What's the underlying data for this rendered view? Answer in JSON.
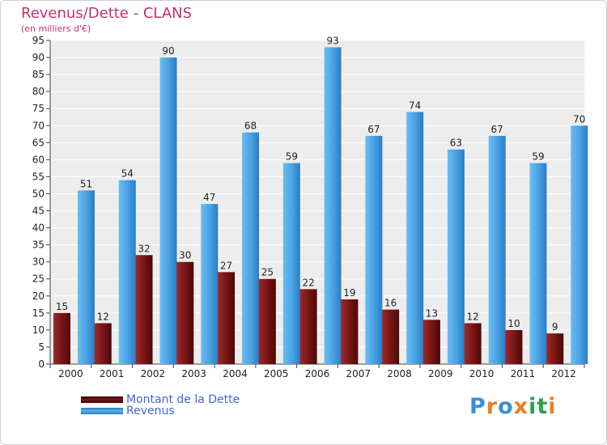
{
  "chart_data": {
    "type": "bar",
    "title": "Revenus/Dette - CLANS",
    "subtitle": "(en milliers d'€)",
    "categories": [
      "2000",
      "2001",
      "2002",
      "2003",
      "2004",
      "2005",
      "2006",
      "2007",
      "2008",
      "2009",
      "2010",
      "2011",
      "2012"
    ],
    "series": [
      {
        "name": "Montant de la Dette",
        "color": "#7a1515",
        "values": [
          15,
          12,
          32,
          30,
          27,
          25,
          22,
          19,
          16,
          13,
          12,
          10,
          9
        ]
      },
      {
        "name": "Revenus",
        "color": "#4aa3e6",
        "values": [
          51,
          54,
          90,
          47,
          68,
          59,
          93,
          67,
          74,
          63,
          67,
          59,
          70
        ]
      }
    ],
    "yticks": [
      0,
      5,
      10,
      15,
      20,
      25,
      30,
      35,
      40,
      45,
      50,
      55,
      60,
      65,
      70,
      75,
      80,
      85,
      90,
      95
    ],
    "ylim": [
      0,
      95
    ],
    "grid": true,
    "legend_position": "bottom-left"
  },
  "logo": {
    "text": "Proxiti"
  }
}
